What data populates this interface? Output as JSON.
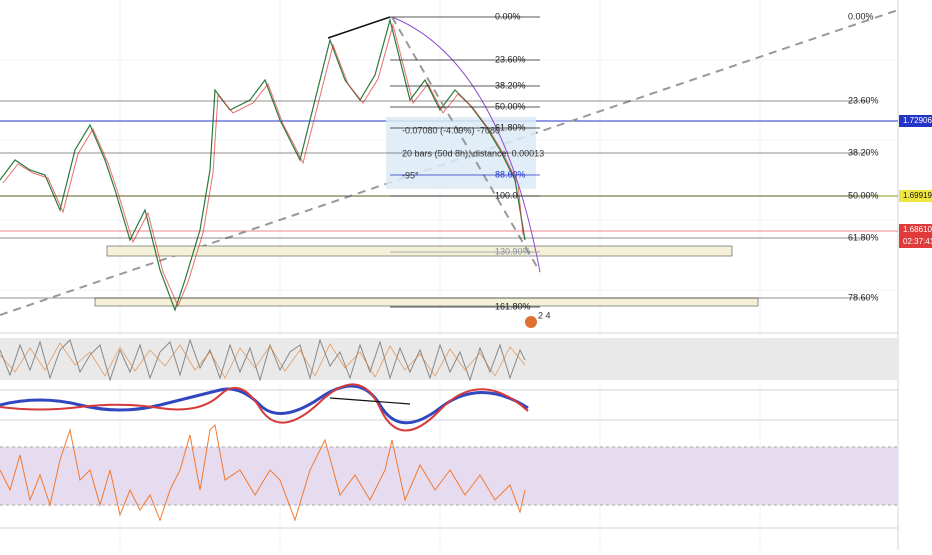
{
  "fib_right": [
    "0.00%",
    "23.60%",
    "38.20%",
    "50.00%",
    "61.80%",
    "78.60%"
  ],
  "fib_left": [
    "0.00%",
    "23.60%",
    "38.20%",
    "50.00%",
    "61.80%",
    "88.60%",
    "100.0",
    "130.90%",
    "161.80%"
  ],
  "measure": [
    "-0.07080 (-4.09%) -7080",
    "20 bars (50d 8h), distance: 0.00013",
    "-95°"
  ],
  "price_tags": [
    "1.72906",
    "1.69919",
    "1.68610",
    "02:37:41"
  ],
  "marker": "2 4"
}
